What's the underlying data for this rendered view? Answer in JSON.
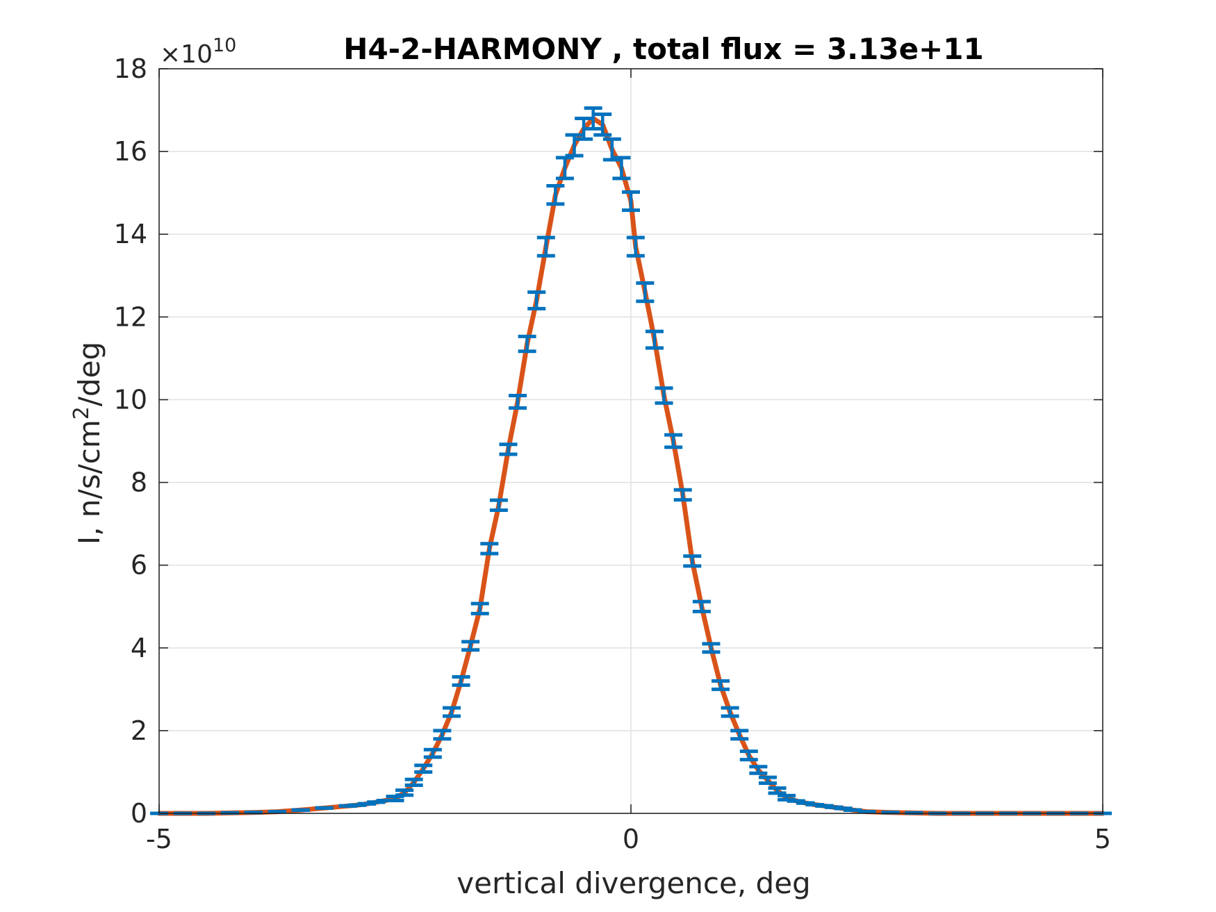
{
  "chart_data": {
    "type": "line",
    "title": "H4-2-HARMONY , total flux =  3.13e+11",
    "xlabel": "vertical divergence, deg",
    "ylabel_prefix": "I, n/s/cm",
    "ylabel_sup": "2",
    "ylabel_suffix": "/deg",
    "y_exponent_prefix": "×10",
    "y_exponent_power": "10",
    "xlim": [
      -5,
      5
    ],
    "ylim": [
      0,
      18
    ],
    "x_ticks": [
      -5,
      0,
      5
    ],
    "y_ticks": [
      0,
      2,
      4,
      6,
      8,
      10,
      12,
      14,
      16,
      18
    ],
    "grid": true,
    "colors": {
      "fit_line": "#d95319",
      "data": "#0072bd",
      "grid": "#dedede",
      "axes": "#262626"
    },
    "series": [
      {
        "style": "errorbar",
        "x": [
          -5.0,
          -4.75,
          -4.5,
          -4.25,
          -4.0,
          -3.75,
          -3.5,
          -3.25,
          -3.0,
          -2.9,
          -2.8,
          -2.7,
          -2.6,
          -2.5,
          -2.4,
          -2.3,
          -2.2,
          -2.1,
          -2.0,
          -1.9,
          -1.8,
          -1.7,
          -1.6,
          -1.5,
          -1.4,
          -1.3,
          -1.2,
          -1.1,
          -1.0,
          -0.9,
          -0.8,
          -0.7,
          -0.6,
          -0.5,
          -0.4,
          -0.3,
          -0.2,
          -0.1,
          0.0,
          0.05,
          0.15,
          0.25,
          0.35,
          0.45,
          0.55,
          0.65,
          0.75,
          0.85,
          0.95,
          1.05,
          1.15,
          1.25,
          1.35,
          1.45,
          1.55,
          1.65,
          1.75,
          1.85,
          1.95,
          2.05,
          2.15,
          2.25,
          2.35,
          2.5,
          2.75,
          3.0,
          3.25,
          3.5,
          3.75,
          4.0,
          4.25,
          4.5,
          4.75,
          5.0
        ],
        "y": [
          0.0,
          0.0,
          0.0,
          0.01,
          0.02,
          0.04,
          0.08,
          0.13,
          0.18,
          0.2,
          0.23,
          0.27,
          0.31,
          0.36,
          0.5,
          0.75,
          1.08,
          1.45,
          1.9,
          2.45,
          3.2,
          4.05,
          4.95,
          6.4,
          7.45,
          8.8,
          9.95,
          11.35,
          12.4,
          13.7,
          14.95,
          15.6,
          16.15,
          16.55,
          16.8,
          16.65,
          16.05,
          15.6,
          14.8,
          13.7,
          12.6,
          11.45,
          10.1,
          9.0,
          7.7,
          6.1,
          5.0,
          4.0,
          3.1,
          2.45,
          1.9,
          1.4,
          1.05,
          0.8,
          0.55,
          0.38,
          0.3,
          0.25,
          0.21,
          0.18,
          0.15,
          0.12,
          0.08,
          0.04,
          0.02,
          0.01,
          0.0,
          0.0,
          0.0,
          0.0,
          0.0,
          0.0,
          0.0,
          0.0
        ],
        "err": [
          0.0,
          0.0,
          0.0,
          0.0,
          0.0,
          0.0,
          0.0,
          0.0,
          0.0,
          0.0,
          0.0,
          0.0,
          0.0,
          0.05,
          0.06,
          0.07,
          0.08,
          0.09,
          0.1,
          0.1,
          0.1,
          0.1,
          0.12,
          0.12,
          0.12,
          0.12,
          0.15,
          0.18,
          0.2,
          0.22,
          0.22,
          0.25,
          0.25,
          0.25,
          0.25,
          0.25,
          0.25,
          0.25,
          0.22,
          0.22,
          0.22,
          0.2,
          0.18,
          0.15,
          0.12,
          0.12,
          0.12,
          0.1,
          0.1,
          0.1,
          0.1,
          0.1,
          0.08,
          0.07,
          0.06,
          0.05,
          0.0,
          0.0,
          0.0,
          0.0,
          0.0,
          0.0,
          0.0,
          0.0,
          0.0,
          0.0,
          0.0,
          0.0,
          0.0,
          0.0,
          0.0,
          0.0,
          0.0,
          0.0
        ]
      }
    ]
  }
}
